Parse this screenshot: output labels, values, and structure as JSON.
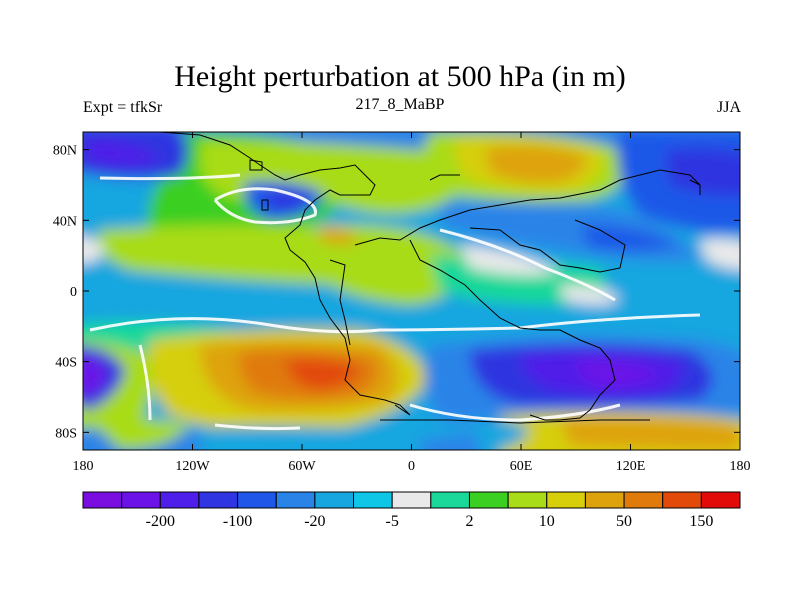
{
  "figure": {
    "title": "Height perturbation at 500 hPa (in m)",
    "left_label": "Expt = tfkSr",
    "center_label": "217_8_MaBP",
    "right_label": "JJA"
  },
  "axes": {
    "y_ticks": [
      {
        "value": 80,
        "label": "80N"
      },
      {
        "value": 40,
        "label": "40N"
      },
      {
        "value": 0,
        "label": "0"
      },
      {
        "value": -40,
        "label": "40S"
      },
      {
        "value": -80,
        "label": "80S"
      }
    ],
    "x_ticks": [
      {
        "value": -180,
        "label": "180"
      },
      {
        "value": -120,
        "label": "120W"
      },
      {
        "value": -60,
        "label": "60W"
      },
      {
        "value": 0,
        "label": "0"
      },
      {
        "value": 60,
        "label": "60E"
      },
      {
        "value": 120,
        "label": "120E"
      },
      {
        "value": 180,
        "label": "180"
      }
    ]
  },
  "colorbar": {
    "colors": [
      "#7a0ee0",
      "#6a12e8",
      "#4f1ee8",
      "#2f35e0",
      "#1f58e8",
      "#2a84e8",
      "#17a6e0",
      "#0fc6e6",
      "#e9e9e9",
      "#19d89a",
      "#3bcf22",
      "#a8dc18",
      "#d6cf0a",
      "#dea30c",
      "#e07a0a",
      "#e24a0a",
      "#e30a0a"
    ],
    "labels": [
      {
        "after_index": 1,
        "text": "-200"
      },
      {
        "after_index": 3,
        "text": "-100"
      },
      {
        "after_index": 5,
        "text": "-20"
      },
      {
        "after_index": 7,
        "text": "-5"
      },
      {
        "after_index": 9,
        "text": "2"
      },
      {
        "after_index": 11,
        "text": "10"
      },
      {
        "after_index": 13,
        "text": "50"
      },
      {
        "after_index": 15,
        "text": "150"
      }
    ]
  }
}
